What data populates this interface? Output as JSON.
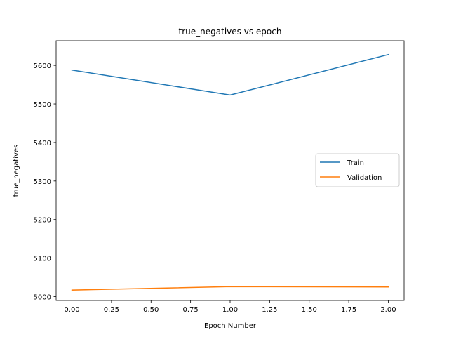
{
  "chart_data": {
    "type": "line",
    "title": "true_negatives vs epoch",
    "xlabel": "Epoch Number",
    "ylabel": "true_negatives",
    "x": [
      0,
      1,
      2
    ],
    "xlim": [
      -0.1,
      2.1
    ],
    "ylim": [
      4990,
      5664
    ],
    "xticks": [
      0.0,
      0.25,
      0.5,
      0.75,
      1.0,
      1.25,
      1.5,
      1.75,
      2.0
    ],
    "xtick_labels": [
      "0.00",
      "0.25",
      "0.50",
      "0.75",
      "1.00",
      "1.25",
      "1.50",
      "1.75",
      "2.00"
    ],
    "yticks": [
      5000,
      5100,
      5200,
      5300,
      5400,
      5500,
      5600
    ],
    "ytick_labels": [
      "5000",
      "5100",
      "5200",
      "5300",
      "5400",
      "5500",
      "5600"
    ],
    "grid": false,
    "legend_position": "center-right",
    "series": [
      {
        "name": "Train",
        "color": "#1f77b4",
        "values": [
          5588,
          5523,
          5628
        ]
      },
      {
        "name": "Validation",
        "color": "#ff7f0e",
        "values": [
          5017,
          5026,
          5025
        ]
      }
    ]
  }
}
